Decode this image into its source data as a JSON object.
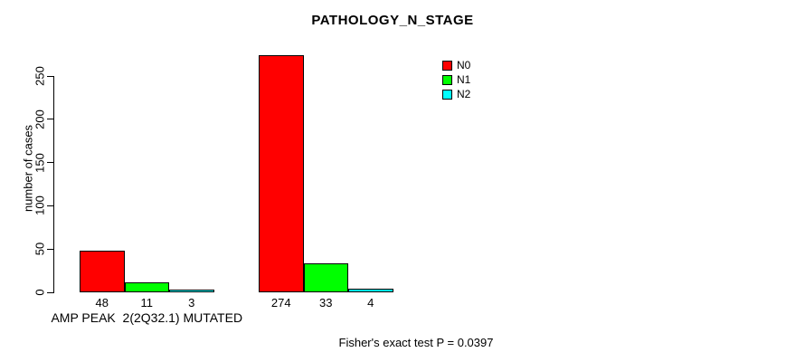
{
  "figure": {
    "title": "PATHOLOGY_N_STAGE",
    "footer": "Fisher's exact test P = 0.0397"
  },
  "chart_data": {
    "type": "bar",
    "title": "PATHOLOGY_N_STAGE",
    "xlabel": "",
    "ylabel": "number of cases",
    "ylim": [
      0,
      250
    ],
    "yticks": [
      0,
      50,
      100,
      150,
      200,
      250
    ],
    "grid": false,
    "legend_position": "top-right",
    "series": [
      {
        "name": "N0",
        "color": "#FF0000"
      },
      {
        "name": "N1",
        "color": "#00FF00"
      },
      {
        "name": "N2",
        "color": "#00FFFF"
      }
    ],
    "groups": [
      {
        "label": "AMP PEAK  2(2Q32.1) MUTATED",
        "values": [
          48,
          11,
          3
        ]
      },
      {
        "label": "",
        "values": [
          274,
          33,
          4
        ]
      }
    ],
    "bar_value_labels": [
      [
        "48",
        "11",
        "3"
      ],
      [
        "274",
        "33",
        "4"
      ]
    ],
    "annotation": "Fisher's exact test P = 0.0397"
  }
}
